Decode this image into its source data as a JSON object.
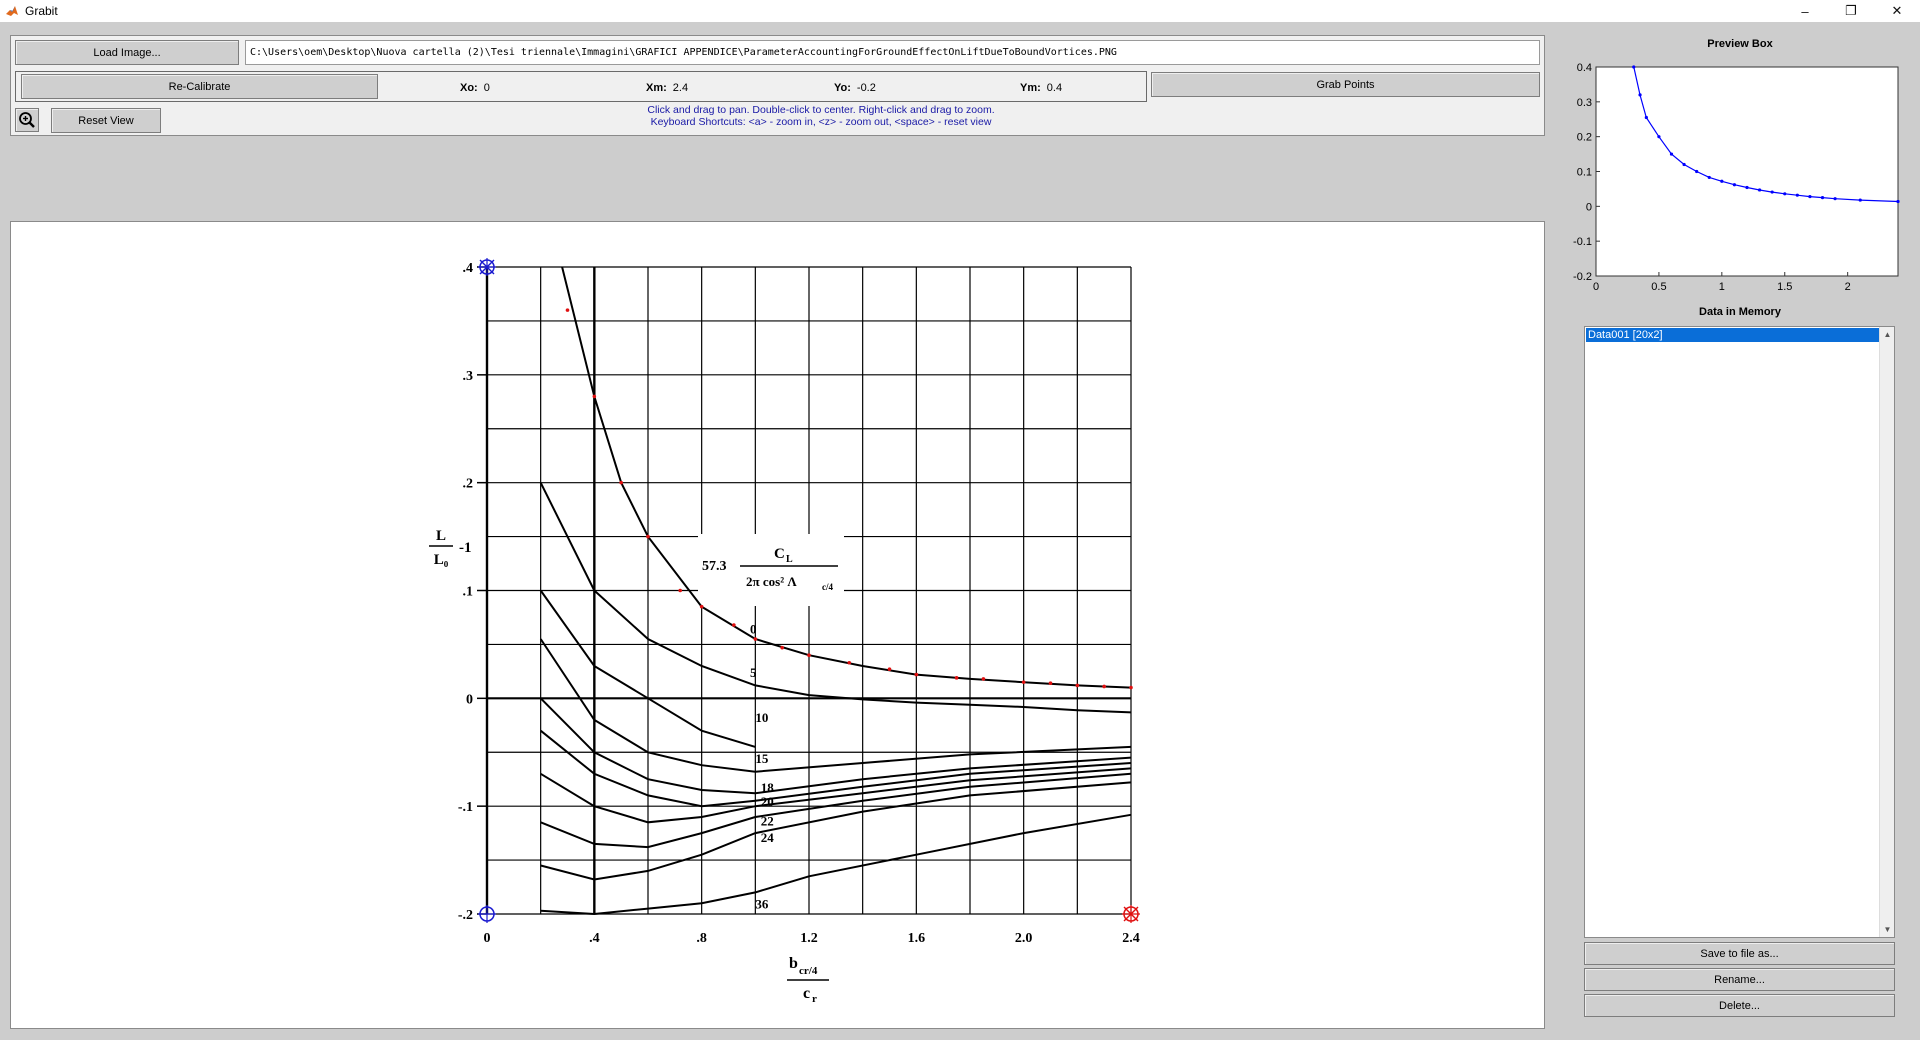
{
  "window": {
    "title": "Grabit",
    "controls": [
      "–",
      "❐",
      "✕"
    ]
  },
  "toolbar": {
    "load_image": "Load Image...",
    "file_path": "C:\\Users\\oem\\Desktop\\Nuova cartella (2)\\Tesi triennale\\Immagini\\GRAFICI APPENDICE\\ParameterAccountingForGroundEffectOnLiftDueToBoundVortices.PNG",
    "recalibrate": "Re-Calibrate",
    "grab_points": "Grab Points",
    "reset_view": "Reset View",
    "hint_line1": "Click and drag to pan. Double-click to center. Right-click and drag to zoom.",
    "hint_line2": "Keyboard Shortcuts: <a> - zoom in, <z> - zoom out, <space> - reset view"
  },
  "calibration": {
    "xo_label": "Xo:",
    "xo_value": "0",
    "xm_label": "Xm:",
    "xm_value": "2.4",
    "yo_label": "Yo:",
    "yo_value": "-0.2",
    "ym_label": "Ym:",
    "ym_value": "0.4"
  },
  "right_panel": {
    "preview_title": "Preview Box",
    "memory_title": "Data in Memory",
    "memory_items": [
      "Data001 [20x2]"
    ],
    "save_button": "Save to file as...",
    "rename_button": "Rename...",
    "delete_button": "Delete..."
  },
  "preview_chart": {
    "chart_data": {
      "type": "line",
      "x_ticks": [
        "0",
        "0.5",
        "1",
        "1.5",
        "2"
      ],
      "y_ticks": [
        "0.4",
        "0.3",
        "0.2",
        "0.1",
        "0",
        "-0.1",
        "-0.2"
      ],
      "xlim": [
        0,
        2.4
      ],
      "ylim": [
        -0.2,
        0.4
      ],
      "series": [
        {
          "color": "#0000ff",
          "x": [
            0.3,
            0.35,
            0.4,
            0.5,
            0.6,
            0.7,
            0.8,
            0.9,
            1.0,
            1.1,
            1.2,
            1.3,
            1.4,
            1.5,
            1.6,
            1.7,
            1.8,
            1.9,
            2.1,
            2.4
          ],
          "y": [
            0.4,
            0.32,
            0.255,
            0.2,
            0.15,
            0.12,
            0.1,
            0.083,
            0.072,
            0.062,
            0.054,
            0.047,
            0.041,
            0.036,
            0.032,
            0.028,
            0.025,
            0.022,
            0.018,
            0.014
          ]
        }
      ]
    }
  },
  "graph_image": {
    "chart_data": {
      "type": "line",
      "x_ticks": [
        "0",
        ".4",
        ".8",
        "1.2",
        "1.6",
        "2.0",
        "2.4"
      ],
      "y_ticks": [
        ".4",
        ".3",
        ".2",
        ".1",
        "0",
        "-.1",
        "-.2"
      ],
      "xlim": [
        0,
        2.4
      ],
      "ylim": [
        -0.2,
        0.4
      ],
      "y_axis_label_top": "L",
      "y_axis_label_bottom": "L₀",
      "y_axis_label_suffix": "-1",
      "x_axis_label_top": "b",
      "x_axis_label_top_sub": "cr/4",
      "x_axis_label_bottom": "c",
      "x_axis_label_bottom_sub": "r",
      "param_prefix": "57.3",
      "param_numerator": "C",
      "param_numerator_sub": "L",
      "param_denominator": "2π cos² Λ",
      "param_denominator_sub": "c/4",
      "series": [
        {
          "name": "0",
          "x": [
            0.28,
            0.4,
            0.5,
            0.6,
            0.8,
            1.0,
            1.2,
            1.4,
            1.6,
            1.8,
            2.0,
            2.2,
            2.4
          ],
          "y": [
            0.4,
            0.28,
            0.2,
            0.15,
            0.085,
            0.055,
            0.04,
            0.03,
            0.022,
            0.018,
            0.015,
            0.012,
            0.01
          ]
        },
        {
          "name": "5",
          "x": [
            0.2,
            0.4,
            0.6,
            0.8,
            1.0,
            1.2,
            1.4,
            1.6,
            1.8,
            2.0,
            2.2,
            2.4
          ],
          "y": [
            0.2,
            0.1,
            0.055,
            0.03,
            0.012,
            0.003,
            -0.001,
            -0.004,
            -0.006,
            -0.008,
            -0.011,
            -0.013
          ]
        },
        {
          "name": "10",
          "x": [
            0.2,
            0.4,
            0.6,
            0.8,
            1.0
          ],
          "y": [
            0.1,
            0.03,
            0.0,
            -0.03,
            -0.045
          ]
        },
        {
          "name": "15",
          "x": [
            0.2,
            0.4,
            0.6,
            0.8,
            1.0,
            1.4,
            1.8,
            2.4
          ],
          "y": [
            0.055,
            -0.02,
            -0.05,
            -0.062,
            -0.068,
            -0.06,
            -0.052,
            -0.045
          ]
        },
        {
          "name": "18",
          "x": [
            0.2,
            0.4,
            0.6,
            0.8,
            1.0,
            1.4,
            1.8,
            2.4
          ],
          "y": [
            0.0,
            -0.05,
            -0.075,
            -0.085,
            -0.088,
            -0.075,
            -0.065,
            -0.055
          ]
        },
        {
          "name": "20",
          "x": [
            0.2,
            0.4,
            0.6,
            0.8,
            1.0,
            1.4,
            1.8,
            2.4
          ],
          "y": [
            -0.03,
            -0.07,
            -0.09,
            -0.1,
            -0.095,
            -0.082,
            -0.07,
            -0.06
          ]
        },
        {
          "name": "22",
          "x": [
            0.2,
            0.4,
            0.6,
            0.8,
            1.0,
            1.4,
            1.8,
            2.4
          ],
          "y": [
            -0.07,
            -0.1,
            -0.115,
            -0.11,
            -0.1,
            -0.088,
            -0.076,
            -0.065
          ]
        },
        {
          "name": "24",
          "x": [
            0.2,
            0.4,
            0.6,
            0.8,
            1.0,
            1.4,
            1.8,
            2.4
          ],
          "y": [
            -0.115,
            -0.135,
            -0.138,
            -0.125,
            -0.11,
            -0.095,
            -0.082,
            -0.07
          ]
        },
        {
          "name": "",
          "x": [
            0.2,
            0.4,
            0.6,
            0.8,
            1.0,
            1.4,
            1.8,
            2.4
          ],
          "y": [
            -0.155,
            -0.168,
            -0.16,
            -0.145,
            -0.125,
            -0.105,
            -0.09,
            -0.078
          ]
        },
        {
          "name": "36",
          "x": [
            0.2,
            0.4,
            0.6,
            0.8,
            1.0,
            1.2,
            1.6,
            2.0,
            2.4
          ],
          "y": [
            -0.197,
            -0.2,
            -0.195,
            -0.19,
            -0.18,
            -0.165,
            -0.145,
            -0.125,
            -0.108
          ]
        }
      ],
      "red_point_x": [
        0.3,
        0.4,
        0.5,
        0.6,
        0.72,
        0.8,
        0.92,
        1.0,
        1.1,
        1.2,
        1.35,
        1.5,
        1.6,
        1.75,
        1.85,
        2.0,
        2.1,
        2.2,
        2.3,
        2.4
      ],
      "red_point_y": [
        0.36,
        0.28,
        0.2,
        0.15,
        0.1,
        0.085,
        0.068,
        0.055,
        0.047,
        0.04,
        0.033,
        0.027,
        0.022,
        0.019,
        0.018,
        0.015,
        0.014,
        0.012,
        0.011,
        0.01
      ]
    }
  }
}
